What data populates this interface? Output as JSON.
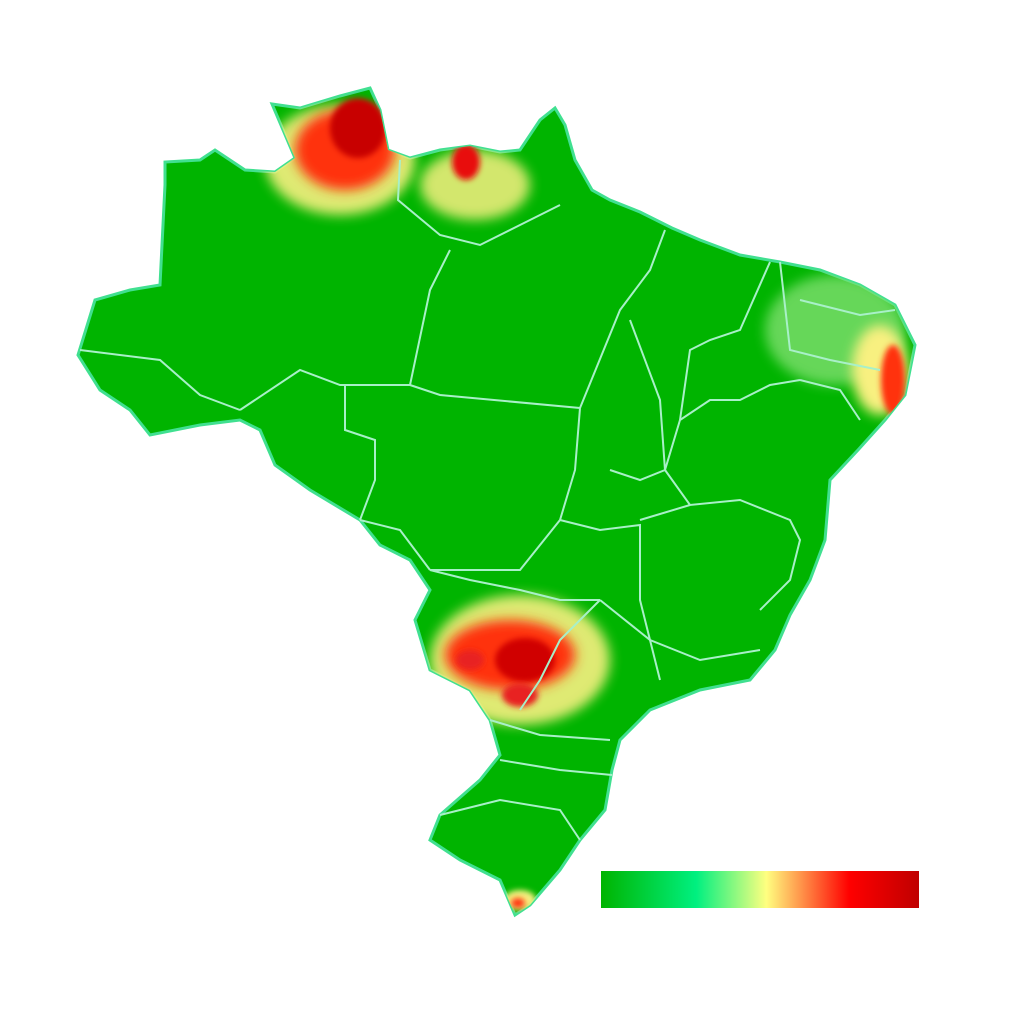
{
  "map": {
    "region": "Brazil",
    "base_color": "#00b400",
    "border_color": "#a8f0c8",
    "hotspot_colors": [
      "#f8f080",
      "#ff3010",
      "#c80000"
    ]
  },
  "legend": {
    "type": "color-scale",
    "labels_shown": false,
    "stops": [
      "#00b400",
      "#00f080",
      "#ffff80",
      "#ff0000",
      "#c00000"
    ]
  }
}
